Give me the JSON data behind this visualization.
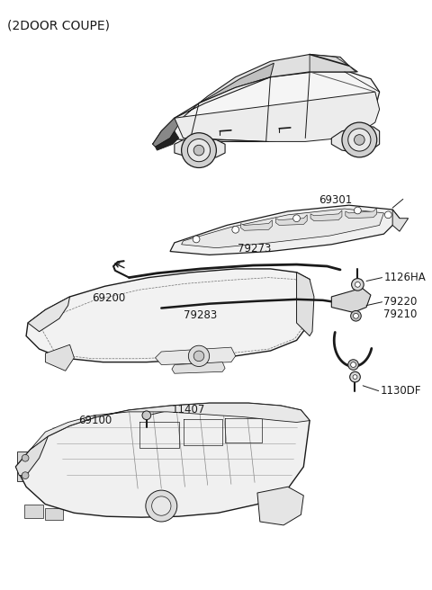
{
  "title": "(2DOOR COUPE)",
  "bg_color": "#ffffff",
  "line_color": "#1a1a1a",
  "text_color": "#1a1a1a",
  "font_size_title": 10,
  "font_size_labels": 8.5,
  "fig_w": 4.8,
  "fig_h": 6.56,
  "dpi": 100
}
